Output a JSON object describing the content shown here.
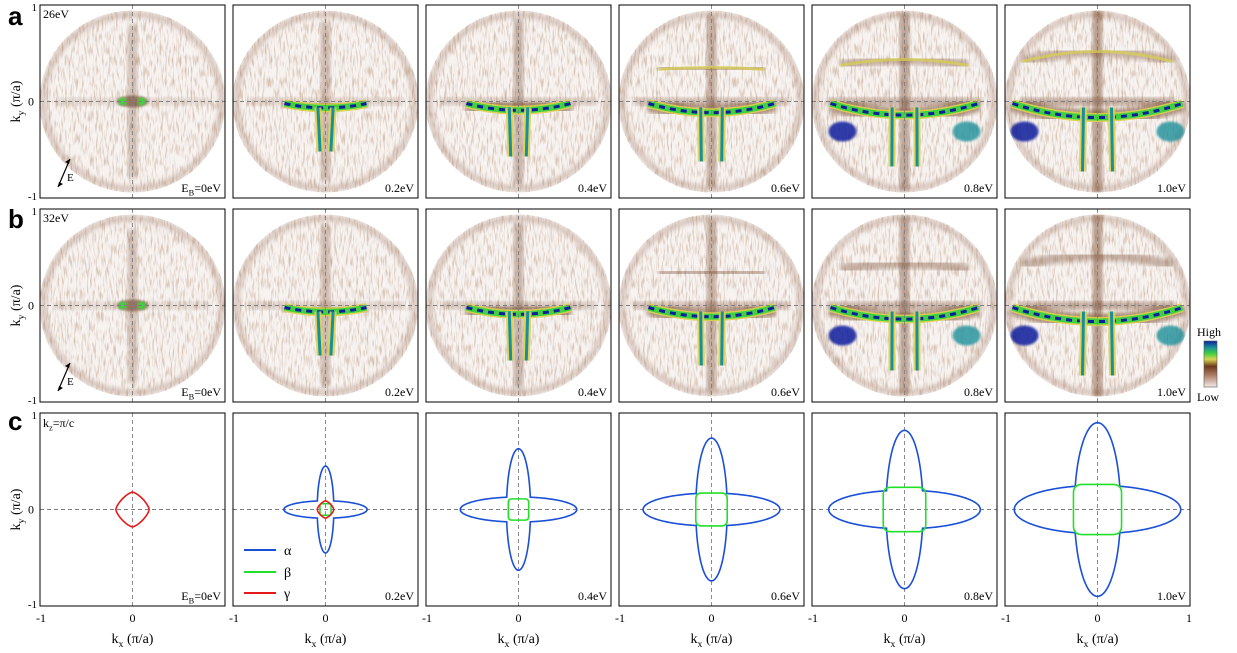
{
  "rows": [
    {
      "label": "a",
      "photon_energy": "26eV",
      "show_polarization": true,
      "polarization_label": "E",
      "panels": [
        {
          "energy_label": "E",
          "energy_sub": "B",
          "energy_value": "=0eV"
        },
        {
          "energy_label": "0.2eV"
        },
        {
          "energy_label": "0.4eV"
        },
        {
          "energy_label": "0.6eV"
        },
        {
          "energy_label": "0.8eV"
        },
        {
          "energy_label": "1.0eV"
        }
      ]
    },
    {
      "label": "b",
      "photon_energy": "32eV",
      "show_polarization": true,
      "polarization_label": "E",
      "panels": [
        {
          "energy_label": "E",
          "energy_sub": "B",
          "energy_value": "=0eV"
        },
        {
          "energy_label": "0.2eV"
        },
        {
          "energy_label": "0.4eV"
        },
        {
          "energy_label": "0.6eV"
        },
        {
          "energy_label": "0.8eV"
        },
        {
          "energy_label": "1.0eV"
        }
      ]
    },
    {
      "label": "c",
      "kz_label": "k",
      "kz_sub": "z",
      "kz_value": "=π/c",
      "panels": [
        {
          "energy_label": "E",
          "energy_sub": "B",
          "energy_value": "=0eV"
        },
        {
          "energy_label": "0.2eV"
        },
        {
          "energy_label": "0.4eV"
        },
        {
          "energy_label": "0.6eV"
        },
        {
          "energy_label": "0.8eV"
        },
        {
          "energy_label": "1.0eV"
        }
      ]
    }
  ],
  "axes": {
    "xlabel_main": "k",
    "xlabel_sub": "x",
    "xlabel_unit": " (π/a)",
    "ylabel_main": "k",
    "ylabel_sub": "y",
    "ylabel_unit": " (π/a)",
    "ticks": [
      "-1",
      "0",
      "1"
    ],
    "range": [
      -1,
      1
    ]
  },
  "colorbar": {
    "high_label": "High",
    "low_label": "Low",
    "colors": [
      "#f2ece8",
      "#b07f68",
      "#6d3a1e",
      "#d9d250",
      "#40d040",
      "#1a8f9a",
      "#0b1f9c"
    ]
  },
  "legend": {
    "items": [
      {
        "symbol": "α",
        "color": "#1a4fd8"
      },
      {
        "symbol": "β",
        "color": "#22e02a"
      },
      {
        "symbol": "γ",
        "color": "#e51a1a"
      }
    ]
  },
  "chart_data": {
    "type": "line",
    "title": "",
    "xlabel": "kx (π/a)",
    "ylabel": "ky (π/a)",
    "xlim": [
      -1,
      1
    ],
    "ylim": [
      -1,
      1
    ],
    "grid": "dashed crosshair at kx=0 and ky=0",
    "description_series": [
      {
        "name": "α",
        "color": "#1a4fd8"
      },
      {
        "name": "β",
        "color": "#22e02a"
      },
      {
        "name": "γ",
        "color": "#e51a1a"
      }
    ],
    "panels": [
      {
        "binding_energy_eV": 0.0,
        "gamma_halfwidth": 0.18
      },
      {
        "binding_energy_eV": 0.2,
        "alpha_long_halfaxis": 0.45,
        "alpha_short_halfaxis": 0.09,
        "beta_halfwidth": 0.06,
        "gamma_halfwidth": 0.09
      },
      {
        "binding_energy_eV": 0.4,
        "alpha_long_halfaxis": 0.63,
        "alpha_short_halfaxis": 0.13,
        "beta_halfwidth": 0.11
      },
      {
        "binding_energy_eV": 0.6,
        "alpha_long_halfaxis": 0.74,
        "alpha_short_halfaxis": 0.17,
        "beta_halfwidth": 0.17
      },
      {
        "binding_energy_eV": 0.8,
        "alpha_long_halfaxis": 0.82,
        "alpha_short_halfaxis": 0.2,
        "beta_halfwidth": 0.23
      },
      {
        "binding_energy_eV": 1.0,
        "alpha_long_halfaxis": 0.9,
        "alpha_short_halfaxis": 0.25,
        "beta_halfwidth": 0.26
      }
    ]
  }
}
